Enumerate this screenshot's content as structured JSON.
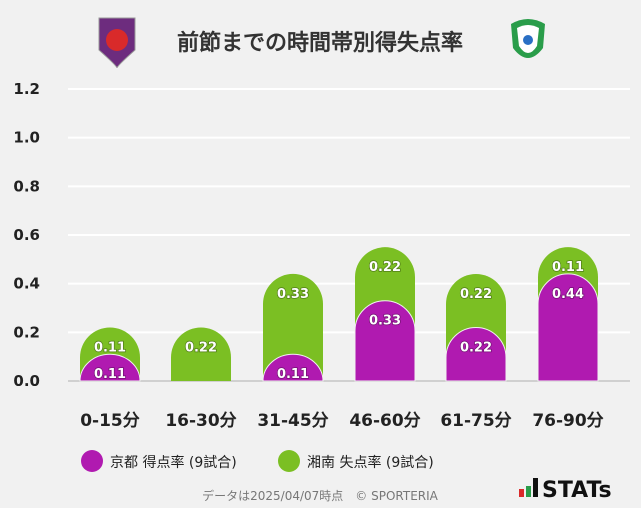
{
  "chart_data": {
    "type": "bar",
    "stacked": true,
    "title": "前節までの時間帯別得失点率",
    "categories": [
      "0-15分",
      "16-30分",
      "31-45分",
      "46-60分",
      "61-75分",
      "76-90分"
    ],
    "series": [
      {
        "name": "京都 得点率 (9試合)",
        "color": "#b01ab0",
        "values": [
          0.11,
          0,
          0.11,
          0.33,
          0.22,
          0.44
        ]
      },
      {
        "name": "湘南 失点率 (9試合)",
        "color": "#7bbf23",
        "values": [
          0.11,
          0.22,
          0.33,
          0.22,
          0.22,
          0.11
        ]
      }
    ],
    "ylim": [
      0,
      1.2
    ],
    "yticks": [
      "0.0",
      "0.2",
      "0.4",
      "0.6",
      "0.8",
      "1.0",
      "1.2"
    ],
    "grid": true,
    "legend": "bottom",
    "xlabel": "",
    "ylabel": ""
  },
  "logos": {
    "left": "KYOTO SANGA",
    "right": "shonan-bellmare-emblem"
  },
  "footer": {
    "note": "データは2025/04/07時点　© SPORTERIA",
    "brand": "STATs"
  }
}
